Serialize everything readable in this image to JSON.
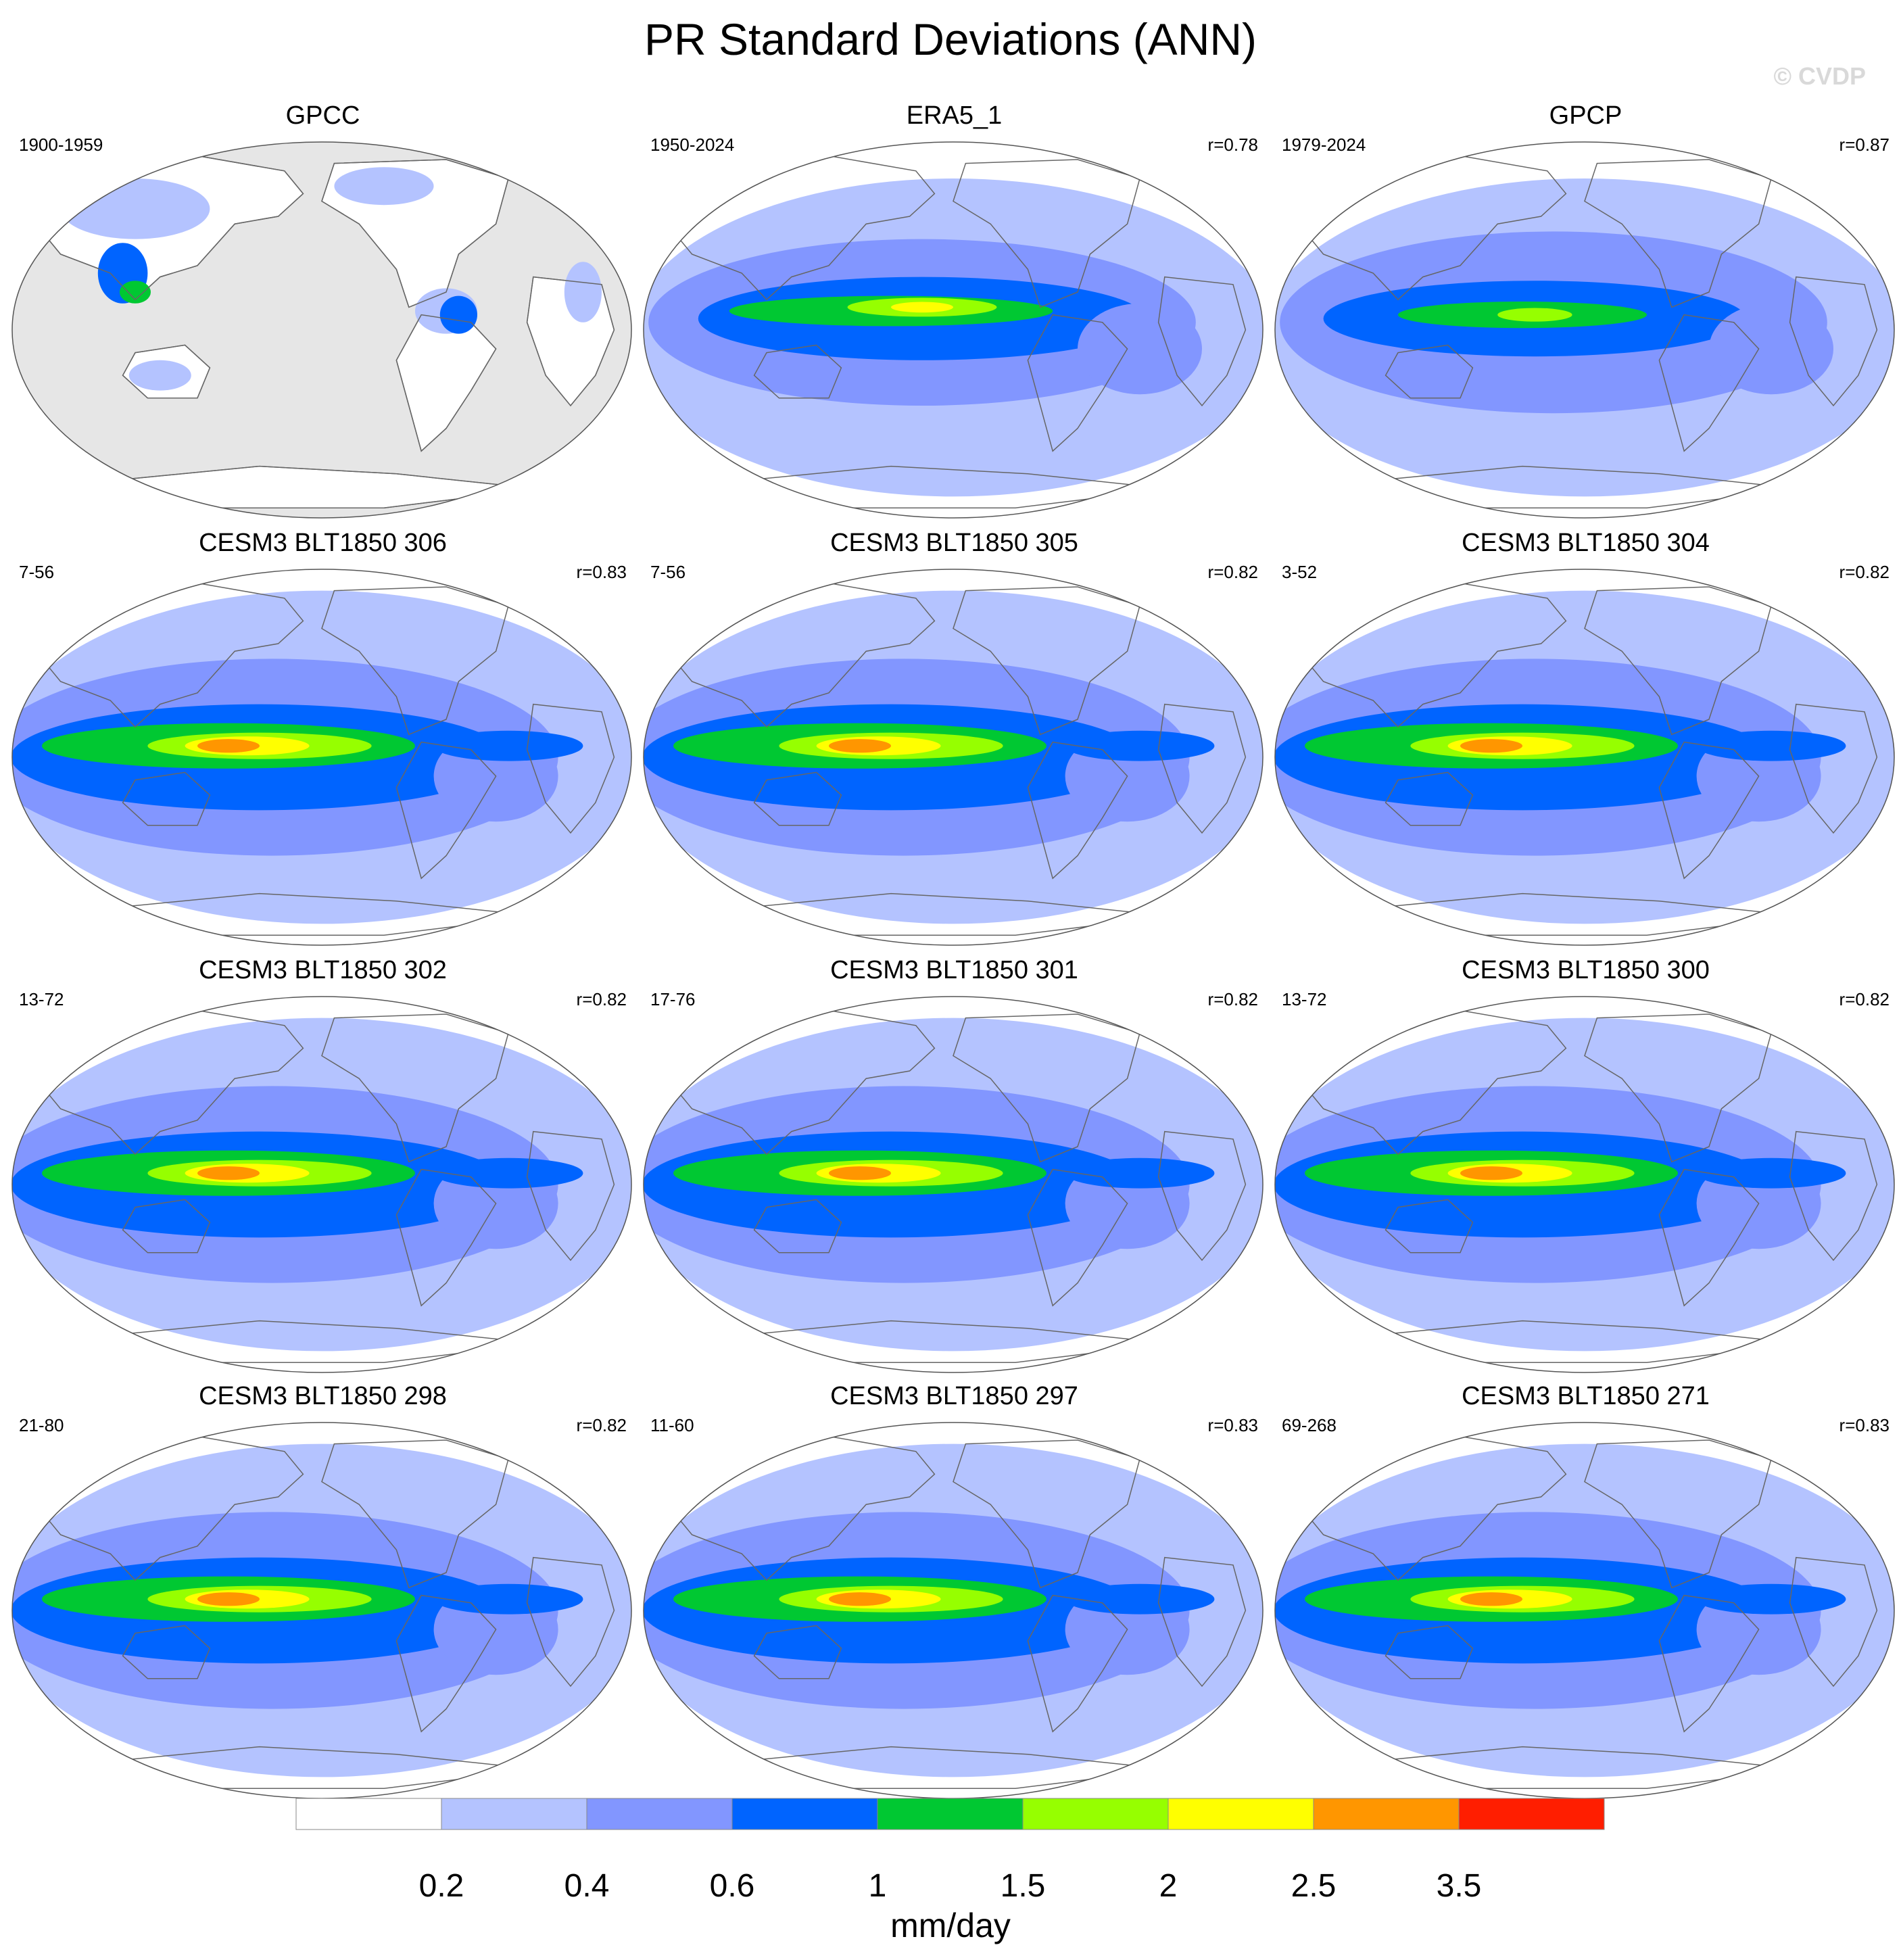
{
  "title": "PR Standard Deviations (ANN)",
  "watermark": "© CVDP",
  "panels": [
    {
      "title": "GPCC",
      "period": "1900-1959",
      "corr": "",
      "pattern": "obs_land"
    },
    {
      "title": "ERA5_1",
      "period": "1950-2024",
      "corr": "r=0.78",
      "pattern": "era5"
    },
    {
      "title": "GPCP",
      "period": "1979-2024",
      "corr": "r=0.87",
      "pattern": "gpcp"
    },
    {
      "title": "CESM3 BLT1850 306",
      "period": "7-56",
      "corr": "r=0.83",
      "pattern": "model"
    },
    {
      "title": "CESM3 BLT1850 305",
      "period": "7-56",
      "corr": "r=0.82",
      "pattern": "model"
    },
    {
      "title": "CESM3 BLT1850 304",
      "period": "3-52",
      "corr": "r=0.82",
      "pattern": "model"
    },
    {
      "title": "CESM3 BLT1850 302",
      "period": "13-72",
      "corr": "r=0.82",
      "pattern": "model"
    },
    {
      "title": "CESM3 BLT1850 301",
      "period": "17-76",
      "corr": "r=0.82",
      "pattern": "model"
    },
    {
      "title": "CESM3 BLT1850 300",
      "period": "13-72",
      "corr": "r=0.82",
      "pattern": "model"
    },
    {
      "title": "CESM3 BLT1850 298",
      "period": "21-80",
      "corr": "r=0.82",
      "pattern": "model"
    },
    {
      "title": "CESM3 BLT1850 297",
      "period": "11-60",
      "corr": "r=0.83",
      "pattern": "model"
    },
    {
      "title": "CESM3 BLT1850 271",
      "period": "69-268",
      "corr": "r=0.83",
      "pattern": "model"
    }
  ],
  "colorbar": {
    "units": "mm/day",
    "levels": [
      "0.2",
      "0.4",
      "0.6",
      "1",
      "1.5",
      "2",
      "2.5",
      "3.5"
    ],
    "colors": [
      "#ffffff",
      "#b4c3ff",
      "#8296ff",
      "#0064ff",
      "#00c832",
      "#96ff00",
      "#ffff00",
      "#ff9600",
      "#ff1e00"
    ],
    "missing_color": "#e6e6e6",
    "coast_color": "#666666"
  }
}
